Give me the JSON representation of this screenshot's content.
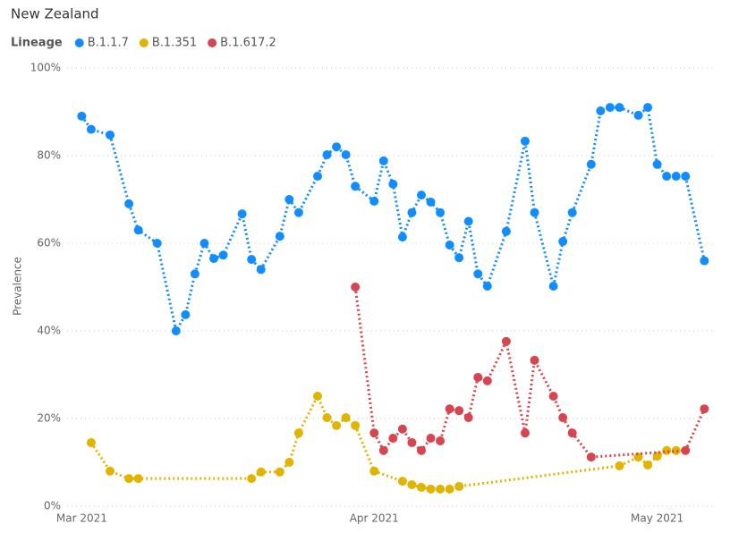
{
  "chart_data": {
    "type": "line",
    "title": "New Zealand",
    "legend_title": "Lineage",
    "y_label": "Prevalence",
    "xlim": [
      -2.5,
      67.2
    ],
    "xticks": [
      {
        "value": 0,
        "label": "Mar 2021"
      },
      {
        "value": 31,
        "label": "Apr 2021"
      },
      {
        "value": 61,
        "label": "May 2021"
      }
    ],
    "ylim": [
      0,
      100
    ],
    "yticks": [
      {
        "value": 0,
        "label": "0%"
      },
      {
        "value": 20,
        "label": "20%"
      },
      {
        "value": 40,
        "label": "40%"
      },
      {
        "value": 60,
        "label": "60%"
      },
      {
        "value": 80,
        "label": "80%"
      },
      {
        "value": 100,
        "label": "100%"
      }
    ],
    "grid": true,
    "series": [
      {
        "name": "B.1.1.7",
        "color": "#118dff",
        "x": [
          0,
          1,
          3,
          5,
          6,
          8,
          10,
          11,
          12,
          13,
          14,
          15,
          17,
          18,
          19,
          21,
          22,
          23,
          25,
          26,
          27,
          28,
          29,
          31,
          32,
          33,
          34,
          35,
          36,
          37,
          38,
          39,
          40,
          41,
          42,
          43,
          45,
          47,
          48,
          50,
          51,
          52,
          54,
          55,
          56,
          57,
          59,
          60,
          61,
          62,
          63,
          64,
          66
        ],
        "values": [
          89,
          86,
          84.7,
          69,
          63,
          60,
          40,
          43.7,
          53,
          60,
          56.5,
          57.3,
          66.7,
          56.3,
          54,
          61.6,
          70,
          67,
          75.3,
          80.2,
          82,
          80.2,
          73,
          69.6,
          78.8,
          73.5,
          61.4,
          67,
          71,
          69.4,
          67,
          59.6,
          56.7,
          65,
          53,
          50.2,
          62.7,
          83.3,
          67,
          50.2,
          60.4,
          67,
          78,
          90.2,
          91,
          91,
          89.2,
          91,
          78,
          75.3,
          75.3,
          75.3,
          56
        ]
      },
      {
        "name": "B.1.351",
        "color": "#e0b400",
        "x": [
          1,
          3,
          5,
          6,
          18,
          19,
          21,
          22,
          23,
          25,
          26,
          27,
          28,
          29,
          31,
          34,
          35,
          36,
          37,
          38,
          39,
          40,
          57,
          59,
          60,
          61,
          62,
          63
        ],
        "values": [
          14.5,
          8,
          6.3,
          6.3,
          6.3,
          7.8,
          7.8,
          10,
          16.7,
          25.1,
          20.2,
          18.4,
          20.2,
          18.4,
          8,
          5.7,
          4.9,
          4.3,
          3.9,
          3.9,
          3.9,
          4.5,
          9.2,
          11.2,
          9.4,
          11.4,
          12.7,
          12.7
        ]
      },
      {
        "name": "B.1.617.2",
        "color": "#d64550",
        "x": [
          29,
          31,
          32,
          33,
          34,
          35,
          36,
          37,
          38,
          39,
          40,
          41,
          42,
          43,
          45,
          47,
          48,
          50,
          51,
          52,
          54,
          64,
          66
        ],
        "values": [
          50,
          16.7,
          12.7,
          15.5,
          17.6,
          14.5,
          12.7,
          15.5,
          14.9,
          22.2,
          21.8,
          20.2,
          29.4,
          28.6,
          37.6,
          16.7,
          33.3,
          25.1,
          20.2,
          16.7,
          11.2,
          12.7,
          22.2
        ]
      }
    ]
  }
}
